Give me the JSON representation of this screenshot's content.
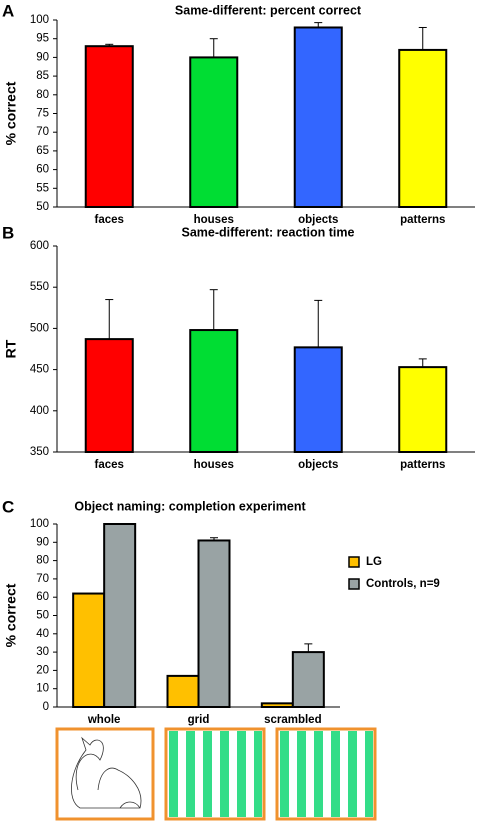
{
  "chart_data": [
    {
      "type": "bar",
      "panel_label": "A",
      "title": "Same-different: percent correct",
      "ylabel": "% correct",
      "categories": [
        "faces",
        "houses",
        "objects",
        "patterns"
      ],
      "values": [
        93,
        90,
        98,
        92
      ],
      "errors": [
        0.5,
        5,
        1.3,
        6
      ],
      "colors": [
        "#ff0000",
        "#00dd33",
        "#3366ff",
        "#ffff00"
      ],
      "ylim": [
        50,
        100
      ],
      "yticks": [
        50,
        55,
        60,
        65,
        70,
        75,
        80,
        85,
        90,
        95,
        100
      ]
    },
    {
      "type": "bar",
      "panel_label": "B",
      "title": "Same-different: reaction time",
      "ylabel": "RT",
      "categories": [
        "faces",
        "houses",
        "objects",
        "patterns"
      ],
      "values": [
        487,
        498,
        477,
        453
      ],
      "errors": [
        48,
        49,
        57,
        10
      ],
      "colors": [
        "#ff0000",
        "#00dd33",
        "#3366ff",
        "#ffff00"
      ],
      "ylim": [
        350,
        600
      ],
      "yticks": [
        350,
        400,
        450,
        500,
        550,
        600
      ]
    },
    {
      "type": "grouped_bar",
      "panel_label": "C",
      "title": "Object naming: completion experiment",
      "ylabel": "% correct",
      "categories": [
        "whole",
        "grid",
        "scrambled"
      ],
      "series": [
        {
          "name": "LG",
          "color": "#ffc000",
          "values": [
            62,
            17,
            2
          ]
        },
        {
          "name": "Controls, n=9",
          "color": "#99a3a4",
          "values": [
            100,
            91,
            30
          ],
          "errors": [
            0,
            1.5,
            4.5
          ]
        }
      ],
      "ylim": [
        0,
        100
      ],
      "yticks": [
        0,
        10,
        20,
        30,
        40,
        50,
        60,
        70,
        80,
        90,
        100
      ]
    }
  ]
}
